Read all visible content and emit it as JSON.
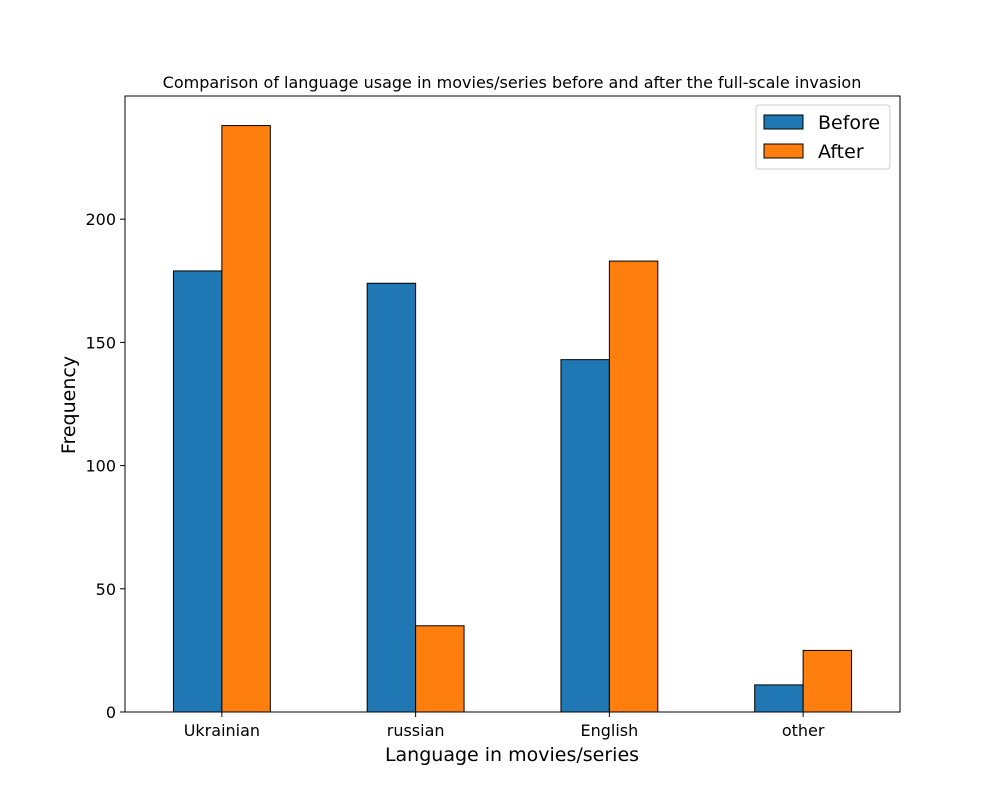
{
  "chart_data": {
    "type": "bar",
    "title": "Comparison of language usage in movies/series before and after the full-scale invasion",
    "xlabel": "Language in movies/series",
    "ylabel": "Frequency",
    "categories": [
      "Ukrainian",
      "russian",
      "English",
      "other"
    ],
    "series": [
      {
        "name": "Before",
        "values": [
          179,
          174,
          143,
          11
        ],
        "color": "#1f77b4"
      },
      {
        "name": "After",
        "values": [
          238,
          35,
          183,
          25
        ],
        "color": "#ff7f0e"
      }
    ],
    "yticks": [
      0,
      50,
      100,
      150,
      200
    ],
    "ylim": [
      0,
      250
    ],
    "grid": false,
    "legend_position": "top-right"
  }
}
